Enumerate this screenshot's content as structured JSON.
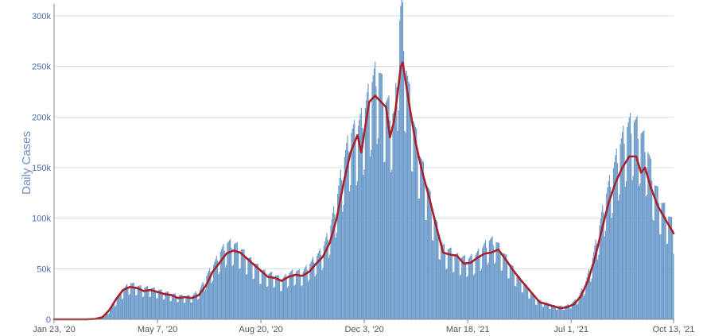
{
  "chart_data": {
    "type": "bar",
    "title": "",
    "xlabel": "",
    "ylabel": "Daily Cases",
    "ylim": [
      0,
      300000
    ],
    "yticks": [
      {
        "value": 0,
        "label": "0"
      },
      {
        "value": 50000,
        "label": "50k"
      },
      {
        "value": 100000,
        "label": "100k"
      },
      {
        "value": 150000,
        "label": "150k"
      },
      {
        "value": 200000,
        "label": "200k"
      },
      {
        "value": 250000,
        "label": "250k"
      },
      {
        "value": 300000,
        "label": "300k"
      }
    ],
    "xticks": [
      {
        "date": "2020-01-23",
        "label": "Jan 23, '20"
      },
      {
        "date": "2020-05-07",
        "label": "May 7, '20"
      },
      {
        "date": "2020-08-20",
        "label": "Aug 20, '20"
      },
      {
        "date": "2020-12-03",
        "label": "Dec 3, '20"
      },
      {
        "date": "2021-03-18",
        "label": "Mar 18, '21"
      },
      {
        "date": "2021-07-01",
        "label": "Jul 1, '21"
      },
      {
        "date": "2021-10-13",
        "label": "Oct 13, '21"
      }
    ],
    "x_range": [
      "2020-01-23",
      "2021-10-13"
    ],
    "grid": true,
    "series": [
      {
        "type": "bar",
        "color": "#6b9ac9",
        "points": [
          [
            "2020-01-23",
            0
          ],
          [
            "2020-02-20",
            0
          ],
          [
            "2020-03-01",
            100
          ],
          [
            "2020-03-08",
            500
          ],
          [
            "2020-03-15",
            3000
          ],
          [
            "2020-03-22",
            12000
          ],
          [
            "2020-03-29",
            22000
          ],
          [
            "2020-04-05",
            30000
          ],
          [
            "2020-04-10",
            33000
          ],
          [
            "2020-04-15",
            31000
          ],
          [
            "2020-04-22",
            29000
          ],
          [
            "2020-04-29",
            29000
          ],
          [
            "2020-05-07",
            27000
          ],
          [
            "2020-05-15",
            25000
          ],
          [
            "2020-05-22",
            23000
          ],
          [
            "2020-05-29",
            22000
          ],
          [
            "2020-06-05",
            21000
          ],
          [
            "2020-06-12",
            22000
          ],
          [
            "2020-06-19",
            27000
          ],
          [
            "2020-06-26",
            40000
          ],
          [
            "2020-07-03",
            50000
          ],
          [
            "2020-07-10",
            62000
          ],
          [
            "2020-07-17",
            70000
          ],
          [
            "2020-07-24",
            69000
          ],
          [
            "2020-07-31",
            64000
          ],
          [
            "2020-08-07",
            56000
          ],
          [
            "2020-08-14",
            51000
          ],
          [
            "2020-08-20",
            45000
          ],
          [
            "2020-08-27",
            42000
          ],
          [
            "2020-09-03",
            41000
          ],
          [
            "2020-09-10",
            36000
          ],
          [
            "2020-09-17",
            42000
          ],
          [
            "2020-09-24",
            44000
          ],
          [
            "2020-10-01",
            43000
          ],
          [
            "2020-10-08",
            50000
          ],
          [
            "2020-10-15",
            57000
          ],
          [
            "2020-10-22",
            65000
          ],
          [
            "2020-10-29",
            82000
          ],
          [
            "2020-11-05",
            110000
          ],
          [
            "2020-11-12",
            145000
          ],
          [
            "2020-11-19",
            170000
          ],
          [
            "2020-11-26",
            175000
          ],
          [
            "2020-12-03",
            190000
          ],
          [
            "2020-12-10",
            215000
          ],
          [
            "2020-12-17",
            230000
          ],
          [
            "2020-12-24",
            200000
          ],
          [
            "2020-12-31",
            190000
          ],
          [
            "2021-01-03",
            185000
          ],
          [
            "2021-01-07",
            265000
          ],
          [
            "2021-01-10",
            290000
          ],
          [
            "2021-01-13",
            245000
          ],
          [
            "2021-01-17",
            210000
          ],
          [
            "2021-01-24",
            170000
          ],
          [
            "2021-01-31",
            140000
          ],
          [
            "2021-02-07",
            115000
          ],
          [
            "2021-02-14",
            88000
          ],
          [
            "2021-02-21",
            66000
          ],
          [
            "2021-02-28",
            63000
          ],
          [
            "2021-03-07",
            58000
          ],
          [
            "2021-03-18",
            55000
          ],
          [
            "2021-03-25",
            58000
          ],
          [
            "2021-04-01",
            64000
          ],
          [
            "2021-04-08",
            72000
          ],
          [
            "2021-04-15",
            72000
          ],
          [
            "2021-04-22",
            62000
          ],
          [
            "2021-04-29",
            52000
          ],
          [
            "2021-05-06",
            42000
          ],
          [
            "2021-05-13",
            34000
          ],
          [
            "2021-05-20",
            26000
          ],
          [
            "2021-05-27",
            18000
          ],
          [
            "2021-06-03",
            16000
          ],
          [
            "2021-06-10",
            13000
          ],
          [
            "2021-06-17",
            12000
          ],
          [
            "2021-06-24",
            12000
          ],
          [
            "2021-07-01",
            14000
          ],
          [
            "2021-07-08",
            20000
          ],
          [
            "2021-07-15",
            32000
          ],
          [
            "2021-07-22",
            52000
          ],
          [
            "2021-07-29",
            82000
          ],
          [
            "2021-08-05",
            112000
          ],
          [
            "2021-08-12",
            135000
          ],
          [
            "2021-08-19",
            158000
          ],
          [
            "2021-08-26",
            175000
          ],
          [
            "2021-09-02",
            182000
          ],
          [
            "2021-09-09",
            172000
          ],
          [
            "2021-09-16",
            158000
          ],
          [
            "2021-09-23",
            125000
          ],
          [
            "2021-09-30",
            108000
          ],
          [
            "2021-10-07",
            96000
          ],
          [
            "2021-10-13",
            85000
          ]
        ]
      },
      {
        "type": "line",
        "color": "#a8212a",
        "points": [
          [
            "2020-01-23",
            0
          ],
          [
            "2020-02-25",
            0
          ],
          [
            "2020-03-05",
            400
          ],
          [
            "2020-03-12",
            2000
          ],
          [
            "2020-03-19",
            9000
          ],
          [
            "2020-03-26",
            20000
          ],
          [
            "2020-04-02",
            29000
          ],
          [
            "2020-04-09",
            32000
          ],
          [
            "2020-04-16",
            31000
          ],
          [
            "2020-04-23",
            28000
          ],
          [
            "2020-04-30",
            29000
          ],
          [
            "2020-05-07",
            27000
          ],
          [
            "2020-05-14",
            25000
          ],
          [
            "2020-05-21",
            24000
          ],
          [
            "2020-05-28",
            21000
          ],
          [
            "2020-06-04",
            22000
          ],
          [
            "2020-06-11",
            21000
          ],
          [
            "2020-06-18",
            24000
          ],
          [
            "2020-06-25",
            33000
          ],
          [
            "2020-07-02",
            47000
          ],
          [
            "2020-07-09",
            56000
          ],
          [
            "2020-07-16",
            65000
          ],
          [
            "2020-07-23",
            68000
          ],
          [
            "2020-07-30",
            66000
          ],
          [
            "2020-08-06",
            60000
          ],
          [
            "2020-08-13",
            54000
          ],
          [
            "2020-08-20",
            48000
          ],
          [
            "2020-08-27",
            42000
          ],
          [
            "2020-09-03",
            41000
          ],
          [
            "2020-09-10",
            38000
          ],
          [
            "2020-09-17",
            42000
          ],
          [
            "2020-09-24",
            44000
          ],
          [
            "2020-10-01",
            43000
          ],
          [
            "2020-10-08",
            47000
          ],
          [
            "2020-10-15",
            55000
          ],
          [
            "2020-10-22",
            62000
          ],
          [
            "2020-10-29",
            76000
          ],
          [
            "2020-11-05",
            100000
          ],
          [
            "2020-11-12",
            135000
          ],
          [
            "2020-11-19",
            165000
          ],
          [
            "2020-11-26",
            182000
          ],
          [
            "2020-11-30",
            165000
          ],
          [
            "2020-12-03",
            185000
          ],
          [
            "2020-12-08",
            215000
          ],
          [
            "2020-12-14",
            221000
          ],
          [
            "2020-12-20",
            215000
          ],
          [
            "2020-12-25",
            210000
          ],
          [
            "2020-12-29",
            180000
          ],
          [
            "2021-01-02",
            195000
          ],
          [
            "2021-01-06",
            225000
          ],
          [
            "2021-01-09",
            250000
          ],
          [
            "2021-01-11",
            254000
          ],
          [
            "2021-01-14",
            235000
          ],
          [
            "2021-01-18",
            210000
          ],
          [
            "2021-01-24",
            175000
          ],
          [
            "2021-01-31",
            145000
          ],
          [
            "2021-02-07",
            120000
          ],
          [
            "2021-02-14",
            92000
          ],
          [
            "2021-02-21",
            66000
          ],
          [
            "2021-02-28",
            64000
          ],
          [
            "2021-03-07",
            63000
          ],
          [
            "2021-03-14",
            55000
          ],
          [
            "2021-03-21",
            56000
          ],
          [
            "2021-03-28",
            61000
          ],
          [
            "2021-04-04",
            65000
          ],
          [
            "2021-04-11",
            66000
          ],
          [
            "2021-04-18",
            69000
          ],
          [
            "2021-04-25",
            60000
          ],
          [
            "2021-05-02",
            50000
          ],
          [
            "2021-05-09",
            41000
          ],
          [
            "2021-05-16",
            33000
          ],
          [
            "2021-05-23",
            25000
          ],
          [
            "2021-05-30",
            17000
          ],
          [
            "2021-06-06",
            15000
          ],
          [
            "2021-06-13",
            13000
          ],
          [
            "2021-06-20",
            11000
          ],
          [
            "2021-06-27",
            12000
          ],
          [
            "2021-07-04",
            15000
          ],
          [
            "2021-07-11",
            23000
          ],
          [
            "2021-07-18",
            38000
          ],
          [
            "2021-07-25",
            60000
          ],
          [
            "2021-08-01",
            88000
          ],
          [
            "2021-08-08",
            115000
          ],
          [
            "2021-08-15",
            135000
          ],
          [
            "2021-08-22",
            150000
          ],
          [
            "2021-08-29",
            161000
          ],
          [
            "2021-09-05",
            161000
          ],
          [
            "2021-09-10",
            145000
          ],
          [
            "2021-09-14",
            150000
          ],
          [
            "2021-09-20",
            130000
          ],
          [
            "2021-09-27",
            112000
          ],
          [
            "2021-10-04",
            100000
          ],
          [
            "2021-10-13",
            85000
          ]
        ]
      }
    ]
  }
}
